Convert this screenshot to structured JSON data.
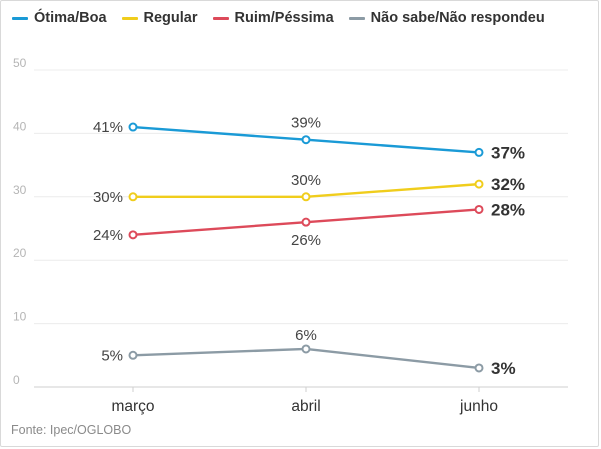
{
  "chart_data": {
    "type": "line",
    "categories": [
      "março",
      "abril",
      "junho"
    ],
    "series": [
      {
        "name": "Ótima/Boa",
        "values": [
          41,
          39,
          37
        ],
        "labels": [
          "41%",
          "39%",
          "37%"
        ],
        "color": "#1a9ad6"
      },
      {
        "name": "Regular",
        "values": [
          30,
          30,
          32
        ],
        "labels": [
          "30%",
          "30%",
          "32%"
        ],
        "color": "#f0cd1c"
      },
      {
        "name": "Ruim/Péssima",
        "values": [
          24,
          26,
          28
        ],
        "labels": [
          "24%",
          "26%",
          "28%"
        ],
        "color": "#dd4a5a"
      },
      {
        "name": "Não sabe/Não respondeu",
        "values": [
          5,
          6,
          3
        ],
        "labels": [
          "5%",
          "6%",
          "3%"
        ],
        "color": "#8c9ba5"
      }
    ],
    "y_ticks": [
      "0",
      "10",
      "20",
      "30",
      "40",
      "50"
    ],
    "ylim": [
      0,
      50
    ],
    "grid": true,
    "legend_position": "top"
  },
  "footer": {
    "source": "Fonte: Ipec/OGLOBO"
  }
}
